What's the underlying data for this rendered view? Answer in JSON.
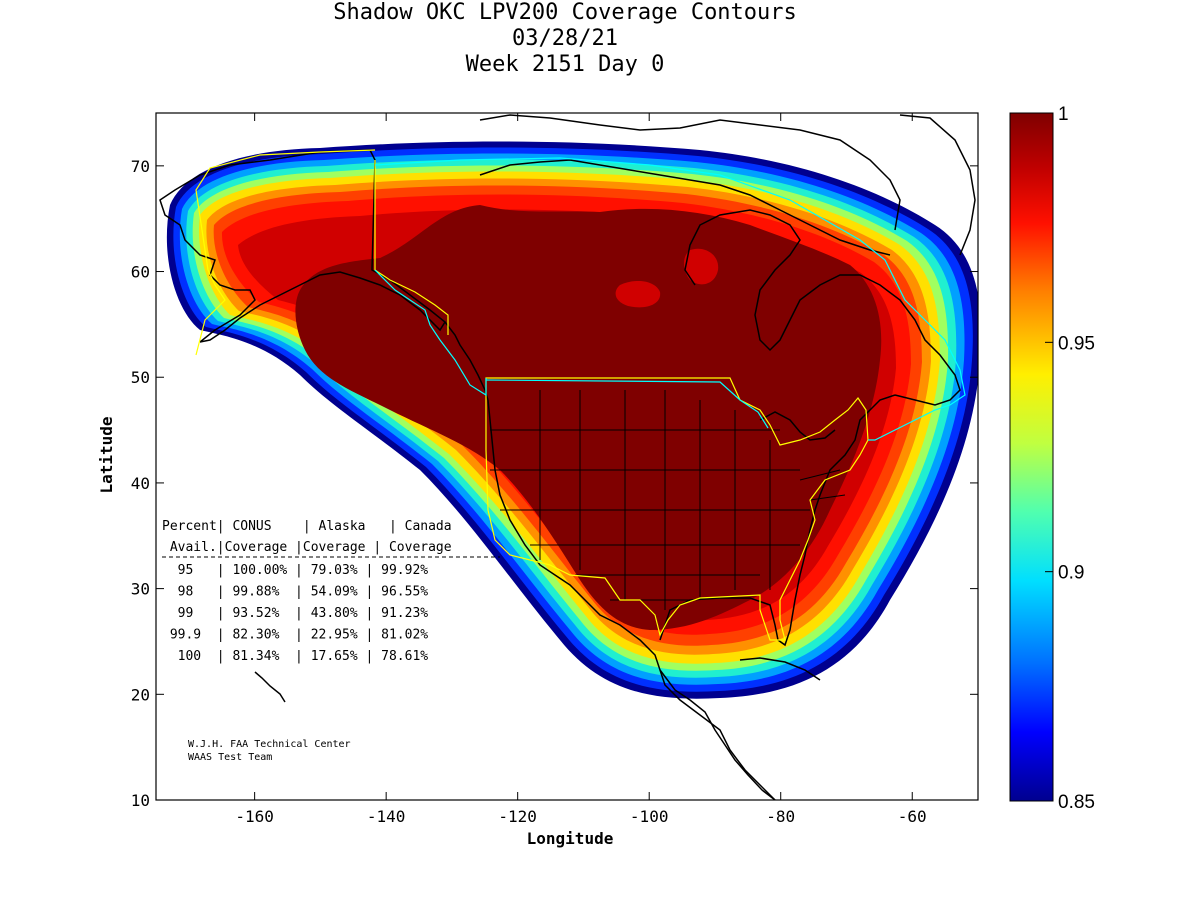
{
  "title": {
    "line1": "Shadow OKC LPV200 Coverage Contours",
    "line2": "03/28/21",
    "line3": "Week 2151 Day 0"
  },
  "axes": {
    "xlabel": "Longitude",
    "ylabel": "Latitude",
    "x_ticks": [
      "-160",
      "-140",
      "-120",
      "-100",
      "-80",
      "-60"
    ],
    "y_ticks": [
      "10",
      "20",
      "30",
      "40",
      "50",
      "60",
      "70"
    ],
    "x_range": [
      -175,
      -50
    ],
    "y_range": [
      10,
      75
    ]
  },
  "colorbar": {
    "range": [
      0.85,
      1
    ],
    "labels": [
      "1",
      "0.95",
      "0.9",
      "0.85"
    ],
    "stops": [
      "#00008f",
      "#0000ff",
      "#0070ff",
      "#00dfff",
      "#50ffaf",
      "#c0ff40",
      "#ffef00",
      "#ff8000",
      "#ff1000",
      "#c00000",
      "#7f0000"
    ]
  },
  "coverage_table": {
    "header1": [
      "Percent",
      "CONUS",
      "Alaska",
      "Canada"
    ],
    "header2": [
      "Avail.",
      "Coverage",
      "Coverage",
      "Coverage"
    ],
    "rows": [
      [
        "95",
        "100.00%",
        "79.03%",
        "99.92%"
      ],
      [
        "98",
        "99.88%",
        "54.09%",
        "96.55%"
      ],
      [
        "99",
        "93.52%",
        "43.80%",
        "91.23%"
      ],
      [
        "99.9",
        "82.30%",
        "22.95%",
        "81.02%"
      ],
      [
        "100",
        "81.34%",
        "17.65%",
        "78.61%"
      ]
    ]
  },
  "credit": {
    "line1": "W.J.H. FAA Technical Center",
    "line2": "WAAS Test Team"
  },
  "colors": {
    "us_boundary": "#ffff00",
    "canada_boundary": "#00ffff",
    "coastline": "#000000"
  }
}
